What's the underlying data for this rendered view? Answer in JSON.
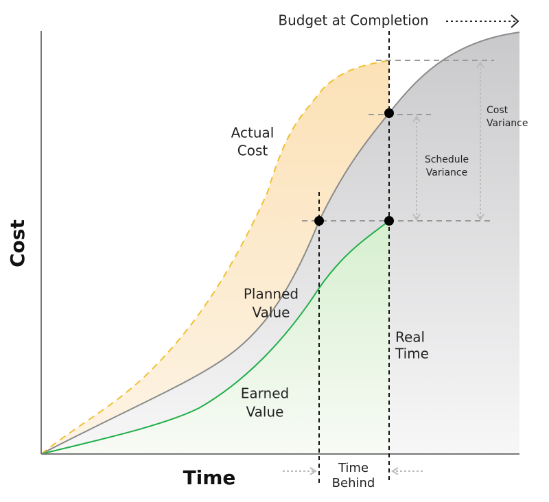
{
  "diagram": {
    "budget_at_completion": "Budget at Completion",
    "y_axis_label": "Cost",
    "x_axis_label": "Time",
    "labels": {
      "actual_cost": [
        "Actual",
        "Cost"
      ],
      "planned_value": [
        "Planned",
        "Value"
      ],
      "earned_value": [
        "Earned",
        "Value"
      ],
      "real_time": [
        "Real",
        "Time"
      ],
      "time_behind": [
        "Time",
        "Behind"
      ],
      "schedule_variance": [
        "Schedule",
        "Variance"
      ],
      "cost_variance": [
        "Cost",
        "Variance"
      ]
    }
  }
}
